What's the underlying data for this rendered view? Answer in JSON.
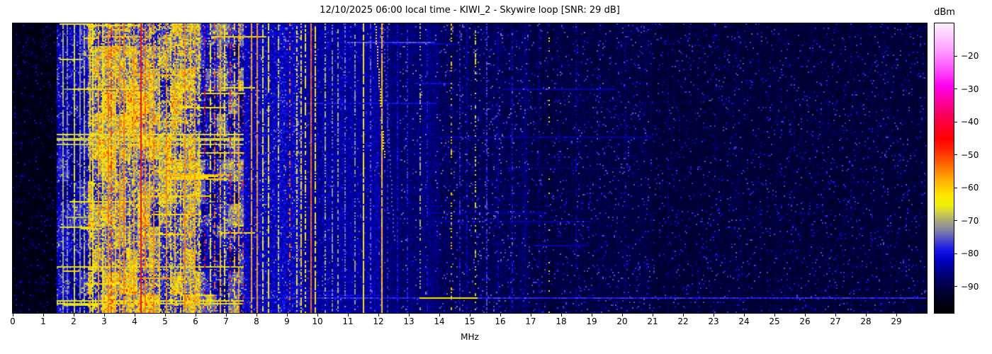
{
  "figure": {
    "background": "#ffffff"
  },
  "chart_data": {
    "type": "heatmap",
    "title": "12/10/2025 06:00 local time - KIWI_2 - Skywire loop [SNR: 29 dB]",
    "xlabel": "MHz",
    "x_range": [
      0,
      30
    ],
    "x_ticks": [
      0,
      1,
      2,
      3,
      4,
      5,
      6,
      7,
      8,
      9,
      10,
      11,
      12,
      13,
      14,
      15,
      16,
      17,
      18,
      19,
      20,
      21,
      22,
      23,
      24,
      25,
      26,
      27,
      28,
      29
    ],
    "y_ticks": [],
    "grid": false,
    "legend": false,
    "colorbar": {
      "label": "dBm",
      "vmin": -98,
      "vmax": -10,
      "ticks": [
        -20,
        -30,
        -40,
        -50,
        -60,
        -70,
        -80,
        -90
      ],
      "tick_labels": [
        "−20",
        "−30",
        "−40",
        "−50",
        "−60",
        "−70",
        "−80",
        "−90"
      ]
    },
    "colormap_stops": [
      [
        -98,
        "#000000"
      ],
      [
        -92,
        "#000030"
      ],
      [
        -86,
        "#00007e"
      ],
      [
        -82,
        "#0000c4"
      ],
      [
        -79,
        "#1414ea"
      ],
      [
        -76,
        "#4848cc"
      ],
      [
        -73,
        "#8080a8"
      ],
      [
        -70,
        "#a8a878"
      ],
      [
        -67,
        "#d8d838"
      ],
      [
        -65,
        "#f2f200"
      ],
      [
        -62,
        "#ffe400"
      ],
      [
        -59,
        "#ffc000"
      ],
      [
        -56,
        "#ff9600"
      ],
      [
        -52,
        "#ff5a00"
      ],
      [
        -48,
        "#ff2200"
      ],
      [
        -45,
        "#ff0000"
      ],
      [
        -41,
        "#ff0030"
      ],
      [
        -37,
        "#f80068"
      ],
      [
        -33,
        "#ff00aa"
      ],
      [
        -29,
        "#ff00ee"
      ],
      [
        -24,
        "#ff50ff"
      ],
      [
        -18,
        "#ffa0ff"
      ],
      [
        -10,
        "#fbeffb"
      ]
    ],
    "render": {
      "seed": 42,
      "cols": 645,
      "rows": 205,
      "noise_sigma_busy": 4.5,
      "baseline_bands": [
        [
          0,
          1.45,
          -95
        ],
        [
          1.45,
          2.45,
          -82
        ],
        [
          2.45,
          3.0,
          -76
        ],
        [
          3.0,
          4.6,
          -71
        ],
        [
          4.6,
          6.2,
          -74
        ],
        [
          6.2,
          7.6,
          -79
        ],
        [
          7.6,
          9.5,
          -82
        ],
        [
          9.5,
          12.2,
          -84
        ],
        [
          12.2,
          14.0,
          -87
        ],
        [
          14.0,
          17.0,
          -89
        ],
        [
          17.0,
          21.0,
          -90.5
        ],
        [
          21.0,
          30.0,
          -91.5
        ]
      ],
      "clutter_bands": [
        [
          1.45,
          2.45,
          0.12,
          5,
          7
        ],
        [
          2.45,
          6.2,
          0.3,
          6,
          9
        ],
        [
          6.2,
          7.6,
          0.18,
          5,
          7
        ],
        [
          7.6,
          9.5,
          0.08,
          4,
          6
        ],
        [
          9.5,
          12.2,
          0.05,
          3,
          5
        ]
      ],
      "carriers": [
        [
          1.62,
          -70,
          0.9
        ],
        [
          1.78,
          -73,
          0.85
        ],
        [
          1.98,
          -67,
          0.95
        ],
        [
          2.17,
          -72,
          0.9
        ],
        [
          2.32,
          -69,
          0.8
        ],
        [
          2.5,
          -60,
          0.9
        ],
        [
          2.62,
          -64,
          0.85
        ],
        [
          2.78,
          -57,
          0.9
        ],
        [
          2.95,
          -62,
          0.85
        ],
        [
          3.1,
          -55,
          0.8
        ],
        [
          3.22,
          -50,
          0.5
        ],
        [
          3.35,
          -59,
          0.9
        ],
        [
          3.5,
          -56,
          0.85
        ],
        [
          3.65,
          -54,
          0.9
        ],
        [
          3.8,
          -60,
          0.8
        ],
        [
          3.95,
          -57,
          0.85
        ],
        [
          4.17,
          -45,
          1.0
        ],
        [
          4.32,
          -54,
          0.85
        ],
        [
          4.47,
          -58,
          0.8
        ],
        [
          4.62,
          -55,
          0.85
        ],
        [
          4.8,
          -60,
          0.8
        ],
        [
          5.0,
          -56,
          0.9
        ],
        [
          5.15,
          -62,
          0.75
        ],
        [
          5.32,
          -58,
          0.8
        ],
        [
          5.5,
          -61,
          0.8
        ],
        [
          5.65,
          -55,
          0.85
        ],
        [
          5.82,
          -59,
          0.8
        ],
        [
          5.95,
          -57,
          0.85
        ],
        [
          6.1,
          -62,
          0.75
        ],
        [
          6.3,
          -42,
          0.3
        ],
        [
          6.45,
          -63,
          0.7
        ],
        [
          6.6,
          -53,
          0.5
        ],
        [
          6.79,
          -58,
          0.8
        ],
        [
          6.95,
          -64,
          0.7
        ],
        [
          7.1,
          -47,
          0.3
        ],
        [
          7.25,
          -60,
          0.75
        ],
        [
          7.38,
          -57,
          0.8
        ],
        [
          7.52,
          -49,
          0.18
        ],
        [
          7.82,
          -57,
          0.95
        ],
        [
          8.0,
          -56,
          0.95
        ],
        [
          8.18,
          -66,
          0.7
        ],
        [
          8.35,
          -63,
          0.75
        ],
        [
          8.7,
          -68,
          0.6
        ],
        [
          9.05,
          -53,
          0.35
        ],
        [
          9.28,
          -66,
          0.6
        ],
        [
          9.42,
          -61,
          0.7
        ],
        [
          9.58,
          -64,
          0.6
        ],
        [
          9.75,
          -53,
          1.0
        ],
        [
          9.9,
          -62,
          0.7
        ],
        [
          10.25,
          -70,
          0.55
        ],
        [
          10.45,
          -73,
          0.5
        ],
        [
          10.65,
          -71,
          0.5
        ],
        [
          10.9,
          -74,
          0.5
        ],
        [
          11.2,
          -72,
          0.55
        ],
        [
          11.5,
          -63,
          0.92
        ],
        [
          11.72,
          -75,
          0.5
        ],
        [
          12.07,
          -59,
          0.95
        ],
        [
          12.3,
          -78,
          0.5
        ],
        [
          12.6,
          -80,
          0.55
        ],
        [
          12.95,
          -78,
          0.5
        ],
        [
          13.35,
          -70,
          0.35
        ],
        [
          13.6,
          -80,
          0.5
        ],
        [
          14.35,
          -59,
          0.22
        ],
        [
          14.65,
          -79,
          0.6
        ],
        [
          14.9,
          -82,
          0.5
        ],
        [
          15.15,
          -67,
          0.25
        ],
        [
          15.55,
          -77,
          0.55
        ],
        [
          15.9,
          -83,
          0.5
        ],
        [
          16.35,
          -80,
          0.5
        ],
        [
          16.8,
          -84,
          0.45
        ],
        [
          17.25,
          -84,
          0.45
        ],
        [
          17.6,
          -63,
          0.1
        ],
        [
          18.45,
          -83,
          0.5
        ],
        [
          19.2,
          -86,
          0.4
        ],
        [
          20.1,
          -85,
          0.45
        ],
        [
          21.5,
          -88,
          0.4
        ],
        [
          23.0,
          -89,
          0.35
        ],
        [
          25.0,
          -89,
          0.35
        ],
        [
          27.5,
          -89.5,
          0.3
        ]
      ],
      "events_explicit": [
        [
          0.953,
          7.4,
          30.0,
          -78
        ],
        [
          0.953,
          13.35,
          15.2,
          -63
        ],
        [
          0.942,
          8.0,
          12.0,
          -81
        ],
        [
          0.39,
          14.0,
          21.0,
          -84
        ],
        [
          0.5,
          16.0,
          20.0,
          -85
        ],
        [
          0.065,
          11.0,
          13.8,
          -76
        ]
      ],
      "events_generated": {
        "busy": {
          "n": 30,
          "f_start": 1.5,
          "f_span": 5.3,
          "len_min": 0.25,
          "len_span": 2.0,
          "lv_min": -65,
          "lv_span": 7
        },
        "wide": {
          "n": 7,
          "f0": 1.45,
          "f1": 7.55,
          "lv_min": -68,
          "lv_span": 4
        },
        "left": {
          "n": 6,
          "f_start": 1.45,
          "f_span": 0.3,
          "len_min": 0.6,
          "len_span": 0.6,
          "lv_min": -70,
          "lv_span": 5
        },
        "quiet": {
          "n": 8,
          "f_start": 7.6,
          "f_span": 10.0,
          "len_min": 1.0,
          "len_span": 5.0,
          "lv_min": -84,
          "lv_span": 4
        }
      },
      "chirps": [
        [
          11.88,
          0.0,
          12.18,
          0.46,
          -62,
          2
        ],
        [
          12.12,
          0.0,
          12.5,
          0.75,
          -75,
          3
        ]
      ],
      "blob_zone": [
        1.45,
        7.6
      ],
      "blob_amp_left": 8,
      "blob_amp_busy": 14,
      "speckle": {
        "below": -87,
        "prob": 0.05,
        "boost_min": 9,
        "boost_span": 7
      }
    }
  }
}
